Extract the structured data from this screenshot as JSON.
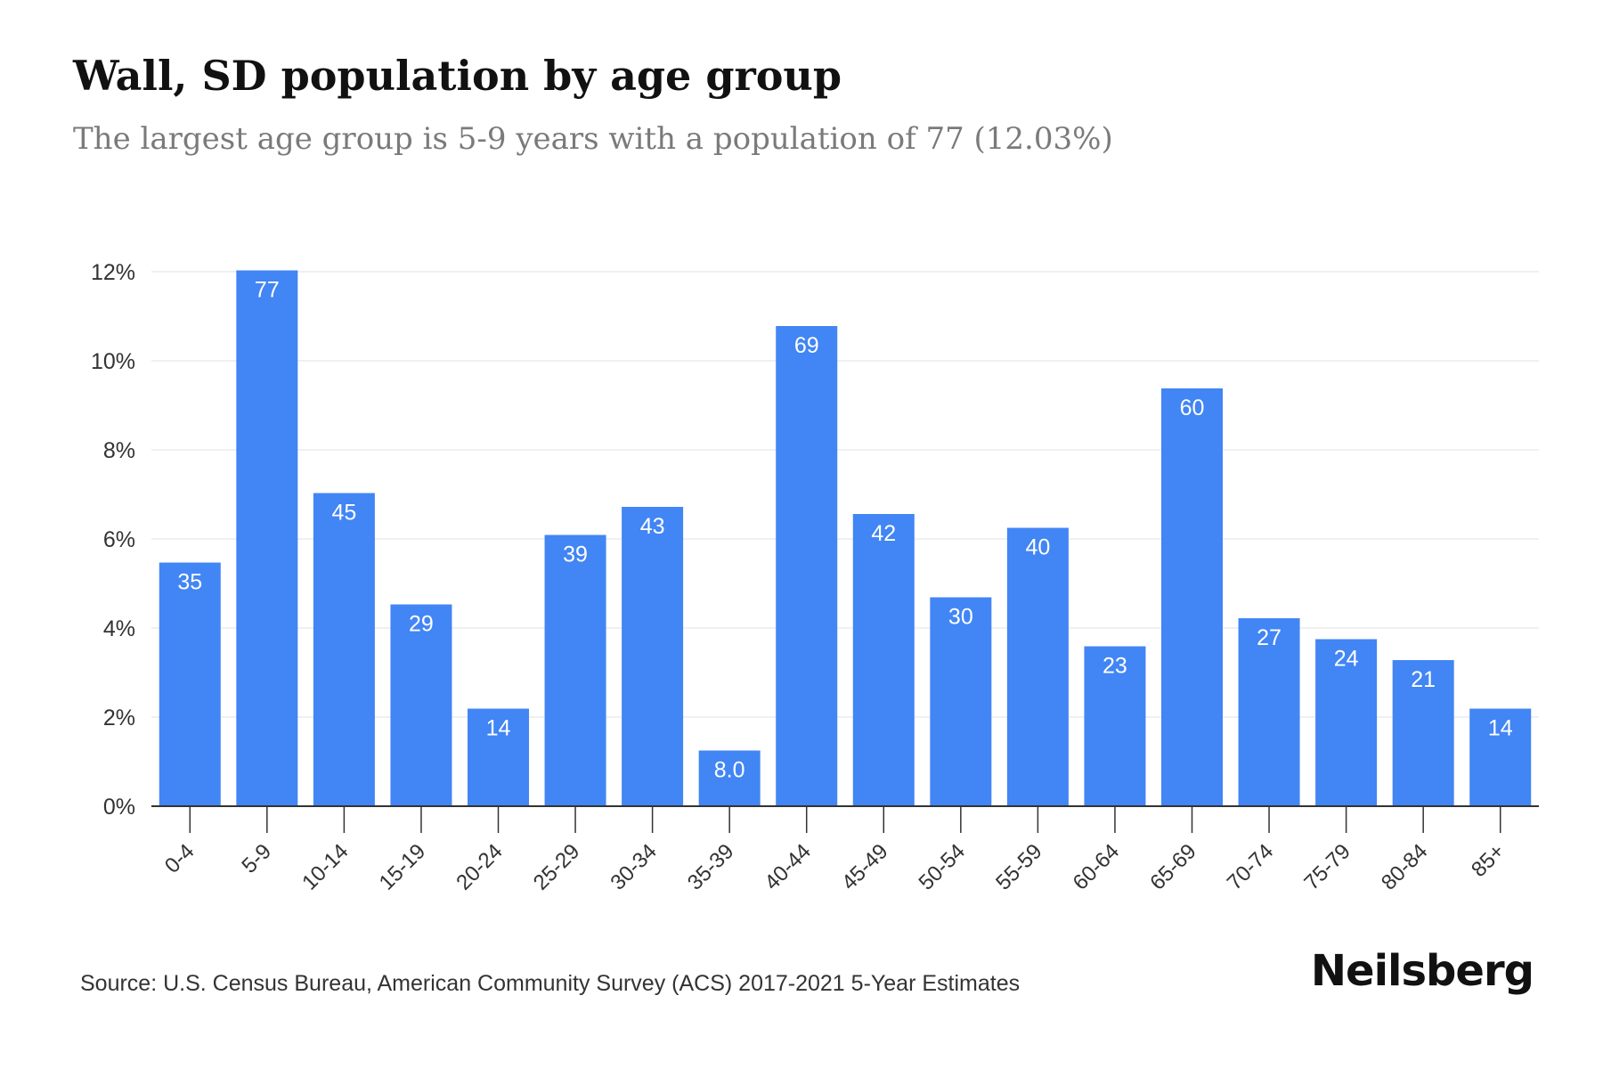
{
  "header": {
    "title": "Wall, SD population by age group",
    "subtitle": "The largest age group is 5-9 years with a population of 77 (12.03%)"
  },
  "footer": {
    "source": "Source: U.S. Census Bureau, American Community Survey (ACS) 2017-2021 5-Year Estimates",
    "brand": "Neilsberg"
  },
  "colors": {
    "bar": "#4285f4",
    "bar_label": "#ffffff",
    "grid": "#ececec",
    "axis": "#333333",
    "tick_text": "#333333"
  },
  "chart_data": {
    "type": "bar",
    "title": "Wall, SD population by age group",
    "subtitle": "The largest age group is 5-9 years with a population of 77 (12.03%)",
    "categories": [
      "0-4",
      "5-9",
      "10-14",
      "15-19",
      "20-24",
      "25-29",
      "30-34",
      "35-39",
      "40-44",
      "45-49",
      "50-54",
      "55-59",
      "60-64",
      "65-69",
      "70-74",
      "75-79",
      "80-84",
      "85+"
    ],
    "values_percent": [
      5.47,
      12.03,
      7.03,
      4.53,
      2.19,
      6.09,
      6.72,
      1.25,
      10.78,
      6.56,
      4.69,
      6.25,
      3.59,
      9.38,
      4.22,
      3.75,
      3.28,
      2.19
    ],
    "data_labels": [
      "35",
      "77",
      "45",
      "29",
      "14",
      "39",
      "43",
      "8.0",
      "69",
      "42",
      "30",
      "40",
      "23",
      "60",
      "27",
      "24",
      "21",
      "14"
    ],
    "yticks": [
      "0%",
      "2%",
      "4%",
      "6%",
      "8%",
      "10%",
      "12%"
    ],
    "ylim": [
      0,
      12
    ],
    "xlabel": "",
    "ylabel": "",
    "grid": true,
    "legend": "none"
  }
}
